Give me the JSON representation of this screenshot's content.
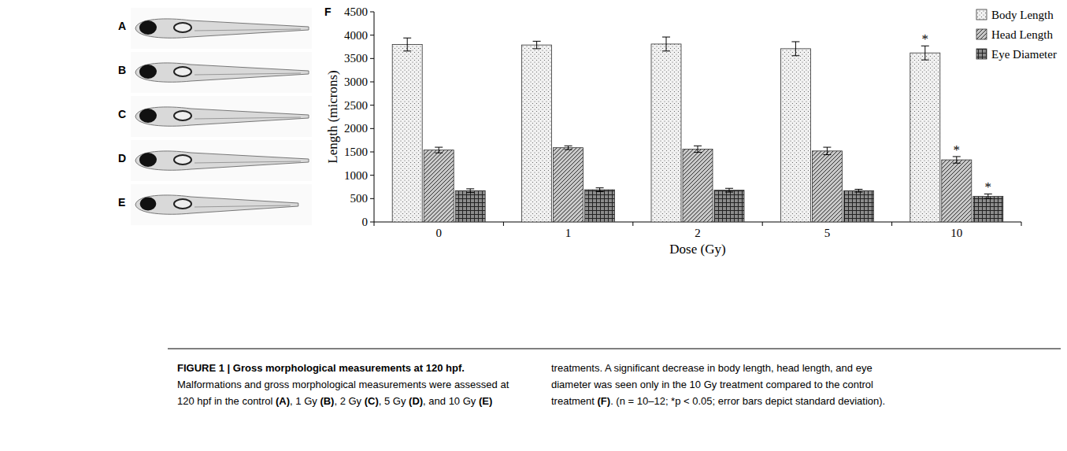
{
  "chart_data": {
    "type": "bar",
    "title": "",
    "x_label": "Dose (Gy)",
    "y_label": "Length (microns)",
    "categories": [
      "0",
      "1",
      "2",
      "5",
      "10"
    ],
    "series": [
      {
        "name": "Body Length",
        "color": "#f2f2f2",
        "values": [
          3800,
          3790,
          3810,
          3710,
          3620
        ],
        "errors": [
          140,
          80,
          150,
          150,
          150
        ]
      },
      {
        "name": "Head Length",
        "color": "#c8c8c8",
        "values": [
          1540,
          1590,
          1560,
          1520,
          1330
        ],
        "errors": [
          60,
          40,
          70,
          80,
          70
        ]
      },
      {
        "name": "Eye Diameter",
        "color": "#8c8c8c",
        "values": [
          670,
          690,
          680,
          670,
          550
        ],
        "errors": [
          40,
          40,
          40,
          30,
          50
        ]
      }
    ],
    "annotations": [
      {
        "text": "*",
        "series": 0,
        "index": 4
      },
      {
        "text": "*",
        "series": 1,
        "index": 4
      },
      {
        "text": "*",
        "series": 2,
        "index": 4
      }
    ],
    "ylim": [
      0,
      4500
    ],
    "yticks": [
      0,
      500,
      1000,
      1500,
      2000,
      2500,
      3000,
      3500,
      4000,
      4500
    ],
    "grid": false,
    "legend": "upper right"
  },
  "panels": {
    "letters": [
      "A",
      "B",
      "C",
      "D",
      "E"
    ],
    "chart_letter": "F"
  },
  "caption": {
    "left": [
      "FIGURE 1 | Gross morphological measurements at 120 hpf.",
      "Malformations and gross morphological measurements were assessed at",
      "120 hpf in the control (A), 1 Gy (B), 2 Gy (C), 5 Gy (D), and 10 Gy (E)"
    ],
    "right": [
      "treatments. A significant decrease in body length, head length, and eye",
      "diameter was seen only in the 10 Gy treatment compared to the control",
      "treatment (F). (n = 10–12; *p < 0.05; error bars depict standard deviation)."
    ]
  }
}
